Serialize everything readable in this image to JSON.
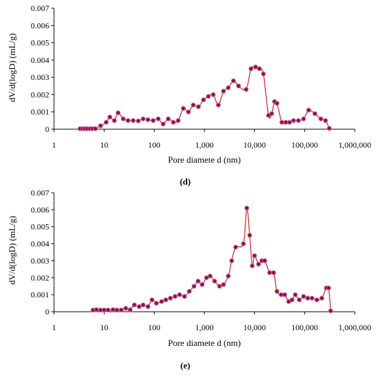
{
  "chart_data": [
    {
      "type": "scatter",
      "panel_label": "(d)",
      "xlabel": "Pore diamete d  (nm)",
      "ylabel": "dV/d(logD) (mL/g)",
      "xscale": "log",
      "xlim": [
        1,
        1000000
      ],
      "ylim": [
        0,
        0.007
      ],
      "xticks": [
        "1",
        "10",
        "100",
        "1,000",
        "10,000",
        "100,000",
        "1,000,000"
      ],
      "yticks": [
        "0",
        "0.001",
        "0.002",
        "0.003",
        "0.004",
        "0.005",
        "0.006",
        "0.007"
      ],
      "grid": false,
      "series": [
        {
          "x": [
            3.3,
            3.7,
            4.1,
            4.6,
            5.2,
            5.9,
            6.7,
            8.5,
            11,
            13,
            16,
            19,
            24,
            30,
            38,
            48,
            60,
            75,
            95,
            120,
            150,
            190,
            240,
            300,
            380,
            480,
            600,
            760,
            960,
            1200,
            1500,
            1900,
            2400,
            3000,
            3800,
            4800,
            6800,
            8500,
            10500,
            12500,
            15000,
            19000,
            22000,
            25000,
            28000,
            35000,
            42000,
            50000,
            60000,
            75000,
            95000,
            120000,
            160000,
            210000,
            260000,
            310000
          ],
          "y": [
            3e-05,
            3e-05,
            3e-05,
            3e-05,
            3e-05,
            3e-05,
            3e-05,
            0.0002,
            0.0004,
            0.0007,
            0.0005,
            0.00095,
            0.0006,
            0.0005,
            0.0005,
            0.00048,
            0.0006,
            0.00055,
            0.0005,
            0.0006,
            0.0003,
            0.0006,
            0.0004,
            0.0005,
            0.0012,
            0.001,
            0.0014,
            0.0013,
            0.0017,
            0.0019,
            0.002,
            0.0014,
            0.0022,
            0.0024,
            0.0028,
            0.0025,
            0.0023,
            0.0035,
            0.0036,
            0.0035,
            0.0032,
            0.0008,
            0.0009,
            0.0016,
            0.0015,
            0.0004,
            0.0004,
            0.0004,
            0.0005,
            0.0005,
            0.0006,
            0.0011,
            0.0009,
            0.0006,
            0.0005,
            5e-05
          ]
        }
      ]
    },
    {
      "type": "scatter",
      "panel_label": "(e)",
      "xlabel": "Pore diamete d  (nm)",
      "ylabel": "dV/d(logD) (mL/g)",
      "xscale": "log",
      "xlim": [
        1,
        1000000
      ],
      "ylim": [
        0,
        0.007
      ],
      "xticks": [
        "1",
        "10",
        "100",
        "1,000",
        "10,000",
        "100,000",
        "1,000,000"
      ],
      "yticks": [
        "0",
        "0.001",
        "0.002",
        "0.003",
        "0.004",
        "0.005",
        "0.006",
        "0.007"
      ],
      "grid": false,
      "series": [
        {
          "x": [
            6,
            7,
            8.5,
            10,
            12,
            15,
            18,
            22,
            27,
            33,
            40,
            50,
            60,
            75,
            90,
            110,
            140,
            170,
            210,
            260,
            320,
            400,
            500,
            620,
            750,
            900,
            1100,
            1300,
            1600,
            2000,
            2400,
            3000,
            3500,
            4200,
            6000,
            7000,
            8000,
            9000,
            10000,
            12000,
            14000,
            16000,
            20000,
            24000,
            28000,
            34000,
            40000,
            48000,
            56000,
            65000,
            78000,
            95000,
            115000,
            140000,
            175000,
            220000,
            270000,
            300000,
            330000
          ],
          "y": [
            0.0001,
            0.00012,
            0.0001,
            0.0001,
            0.0001,
            0.00012,
            0.0001,
            0.0001,
            0.0002,
            0.00012,
            0.0004,
            0.0003,
            0.0004,
            0.0003,
            0.0007,
            0.0005,
            0.0006,
            0.0007,
            0.0008,
            0.0009,
            0.001,
            0.0009,
            0.0012,
            0.0015,
            0.0018,
            0.0016,
            0.002,
            0.0021,
            0.0018,
            0.0015,
            0.0016,
            0.0021,
            0.003,
            0.0038,
            0.004,
            0.0061,
            0.0045,
            0.0027,
            0.0033,
            0.0028,
            0.003,
            0.003,
            0.0023,
            0.0023,
            0.0012,
            0.001,
            0.001,
            0.0006,
            0.0007,
            0.001,
            0.0007,
            0.0009,
            0.0008,
            0.0008,
            0.0007,
            0.0008,
            0.0014,
            0.0014,
            5e-05
          ]
        }
      ]
    }
  ]
}
